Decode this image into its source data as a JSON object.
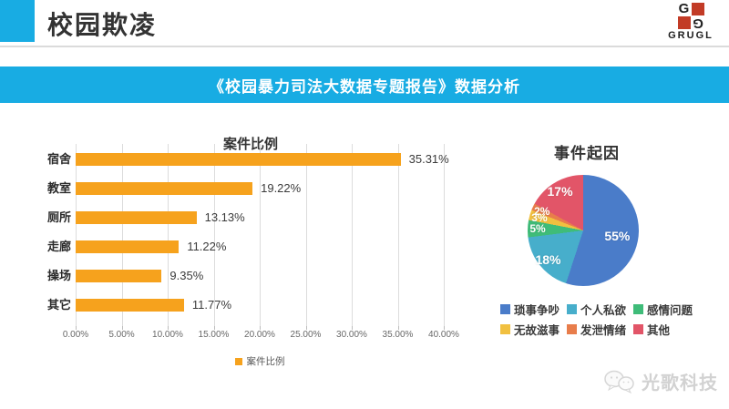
{
  "slide": {
    "title": "校园欺凌",
    "banner": "《校园暴力司法大数据专题报告》数据分析",
    "logo": {
      "text": "GRUGL",
      "glyph": "G",
      "red": "#C23B26"
    },
    "watermark": "光歌科技"
  },
  "colors": {
    "accent_cyan": "#18ACE3",
    "grid_gray": "#DCDCDC"
  },
  "chart_data": [
    {
      "type": "bar",
      "orientation": "horizontal",
      "title": "案件比例",
      "categories": [
        "宿舍",
        "教室",
        "厕所",
        "走廊",
        "操场",
        "其它"
      ],
      "values": [
        35.31,
        19.22,
        13.13,
        11.22,
        9.35,
        11.77
      ],
      "value_labels": [
        "35.31%",
        "19.22%",
        "13.13%",
        "11.22%",
        "9.35%",
        "11.77%"
      ],
      "x_ticks": [
        "0.00%",
        "5.00%",
        "10.00%",
        "15.00%",
        "20.00%",
        "25.00%",
        "30.00%",
        "35.00%",
        "40.00%"
      ],
      "xlim": [
        0,
        40
      ],
      "grid": true,
      "bar_color": "#F6A21D",
      "legend": [
        "案件比例"
      ],
      "legend_position": "bottom"
    },
    {
      "type": "pie",
      "title": "事件起因",
      "labels": [
        "琐事争吵",
        "个人私欲",
        "感情问题",
        "无故滋事",
        "发泄情绪",
        "其他"
      ],
      "values": [
        55,
        18,
        5,
        3,
        2,
        17
      ],
      "value_labels": [
        "55%",
        "18%",
        "5%",
        "3%",
        "2%",
        "17%"
      ],
      "colors": [
        "#4A7CC9",
        "#47AECB",
        "#3FBC79",
        "#F1C040",
        "#E87D4B",
        "#E25568"
      ],
      "start_angle_deg": 0,
      "direction": "clockwise",
      "legend_position": "bottom"
    }
  ]
}
